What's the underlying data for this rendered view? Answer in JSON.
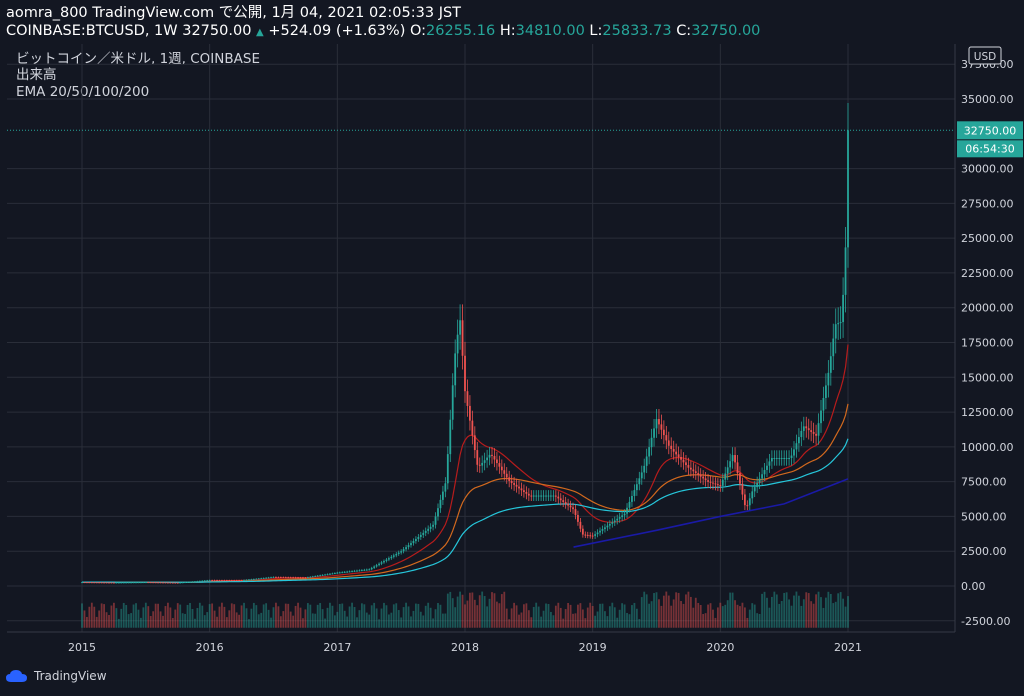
{
  "header": {
    "line1": "aomra_800 TradingView.com で公開, 1月 04, 2021 02:05:33 JST",
    "symbol": "COINBASE:BTCUSD, 1W 32750.00",
    "change": "+524.09 (+1.63%)",
    "o_label": "O:",
    "o": "26255.16",
    "h_label": "H:",
    "h": "34810.00",
    "l_label": "L:",
    "l": "25833.73",
    "c_label": "C:",
    "c": "32750.00"
  },
  "legend": {
    "title": "ビットコイン／米ドル, 1週, COINBASE",
    "volume": "出来高",
    "ema": "EMA 20/50/100/200"
  },
  "axis": {
    "currency": "USD",
    "last_price": "32750.00",
    "countdown": "06:54:30"
  },
  "footer": {
    "brand": "TradingView"
  },
  "colors": {
    "background": "#131722",
    "grid": "#2a2e39",
    "up": "#26a69a",
    "down": "#ef5350",
    "ema20": "#b71c1c",
    "ema50": "#d2691e",
    "ema100": "#26c6da",
    "ema200": "#1a1aa6"
  },
  "chart_data": {
    "type": "line",
    "y_ticks": [
      -2500,
      0,
      2500,
      5000,
      7500,
      10000,
      12500,
      15000,
      17500,
      20000,
      22500,
      25000,
      27500,
      30000,
      35000,
      37500
    ],
    "x_ticks": [
      "2015",
      "2016",
      "2017",
      "2018",
      "2019",
      "2020",
      "2021"
    ],
    "ylim": [
      -3000,
      37500
    ],
    "price_series": {
      "name": "COINBASE:BTCUSD",
      "x": [
        2015.0,
        2015.25,
        2015.5,
        2015.75,
        2016.0,
        2016.25,
        2016.5,
        2016.75,
        2017.0,
        2017.25,
        2017.5,
        2017.75,
        2017.85,
        2017.92,
        2017.96,
        2018.0,
        2018.1,
        2018.2,
        2018.35,
        2018.5,
        2018.7,
        2018.85,
        2018.92,
        2019.0,
        2019.25,
        2019.4,
        2019.5,
        2019.6,
        2019.75,
        2019.9,
        2020.0,
        2020.1,
        2020.2,
        2020.25,
        2020.4,
        2020.55,
        2020.65,
        2020.75,
        2020.85,
        2020.9,
        2020.95,
        2020.98,
        2021.0
      ],
      "y": [
        280,
        250,
        280,
        240,
        430,
        420,
        650,
        610,
        960,
        1200,
        2500,
        4400,
        7500,
        16500,
        19300,
        14000,
        8500,
        9500,
        7500,
        6500,
        6500,
        5500,
        3700,
        3600,
        5200,
        8500,
        12000,
        10000,
        8500,
        7500,
        7200,
        9500,
        5500,
        6800,
        9200,
        9200,
        11500,
        10800,
        15500,
        18800,
        19000,
        24000,
        32750
      ]
    },
    "ema200": {
      "name": "EMA 200",
      "x": [
        2018.85,
        2019.5,
        2020.0,
        2020.5,
        2021.0
      ],
      "y": [
        2800,
        4000,
        5000,
        5900,
        7700
      ]
    },
    "volume_axis_range": [
      -2500,
      2500
    ]
  }
}
